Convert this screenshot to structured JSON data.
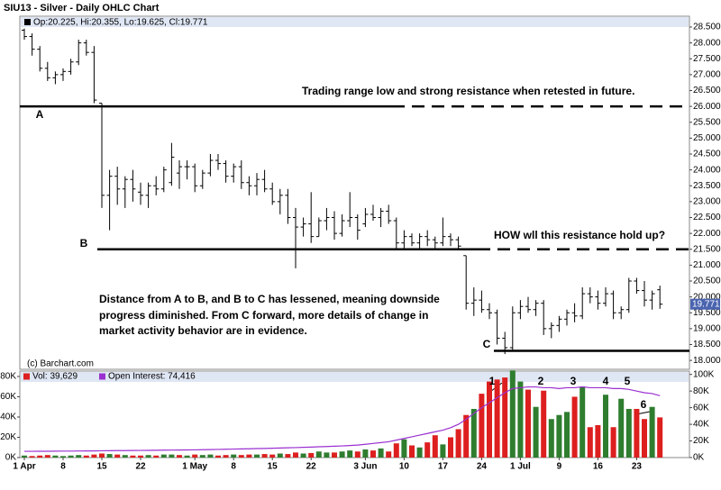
{
  "chart_data": [
    {
      "type": "ohlc",
      "title": "SIU13 - Silver - Daily OHLC Chart",
      "header": "Op:20.225, Hi:20.355, Lo:19.625, Cl:19.771",
      "color": "#000000",
      "open": [
        28.4,
        28.2,
        27.8,
        27.2,
        26.9,
        27.0,
        27.1,
        27.4,
        28.0,
        27.7,
        26.1,
        23.2,
        23.8,
        23.4,
        23.7,
        23.3,
        23.2,
        23.5,
        23.4,
        23.6,
        23.9,
        24.1,
        24.1,
        23.5,
        23.9,
        24.3,
        24.2,
        23.8,
        24.1,
        23.6,
        23.5,
        23.7,
        23.4,
        23.0,
        23.2,
        22.5,
        22.2,
        22.3,
        21.9,
        22.4,
        22.5,
        22.0,
        22.4,
        22.5,
        22.3,
        22.6,
        22.5,
        22.7,
        22.4,
        21.7,
        21.9,
        21.7,
        21.9,
        21.8,
        21.7,
        21.9,
        21.8,
        21.3,
        19.8,
        19.9,
        19.6,
        19.5,
        18.7,
        18.4,
        19.5,
        19.7,
        19.6,
        19.8,
        19.0,
        19.1,
        19.3,
        19.5,
        19.4,
        20.1,
        20.0,
        19.8,
        20.1,
        19.5,
        19.6,
        20.5,
        20.2,
        19.9,
        20.225
      ],
      "high": [
        28.45,
        28.3,
        27.9,
        27.4,
        27.1,
        27.2,
        27.5,
        28.1,
        28.1,
        27.9,
        26.1,
        24.0,
        24.1,
        23.8,
        24.0,
        23.6,
        23.6,
        23.8,
        24.1,
        24.85,
        24.3,
        24.3,
        24.2,
        24.0,
        24.5,
        24.5,
        24.3,
        24.2,
        24.3,
        23.8,
        23.9,
        24.0,
        23.6,
        23.4,
        23.4,
        22.8,
        22.5,
        23.3,
        22.5,
        22.8,
        22.7,
        22.6,
        23.3,
        22.6,
        22.8,
        22.9,
        22.8,
        22.9,
        22.5,
        22.1,
        22.0,
        22.0,
        22.1,
        21.9,
        22.5,
        22.0,
        21.9,
        21.3,
        20.3,
        20.2,
        19.8,
        19.6,
        18.9,
        19.7,
        19.9,
        20.0,
        19.9,
        19.9,
        19.2,
        19.4,
        19.6,
        19.8,
        20.3,
        20.3,
        20.2,
        20.3,
        20.2,
        19.7,
        20.6,
        20.6,
        20.5,
        20.2,
        20.355
      ],
      "low": [
        28.1,
        27.6,
        27.1,
        26.8,
        26.7,
        26.8,
        27.0,
        27.3,
        27.6,
        26.1,
        22.8,
        22.1,
        22.9,
        22.8,
        23.0,
        22.9,
        22.8,
        23.2,
        23.3,
        23.5,
        23.4,
        23.7,
        23.3,
        23.4,
        23.8,
        24.0,
        23.6,
        23.6,
        23.4,
        23.2,
        23.2,
        23.3,
        22.9,
        22.6,
        22.3,
        20.9,
        21.9,
        21.7,
        21.9,
        22.1,
        21.8,
        21.9,
        22.2,
        21.8,
        22.2,
        22.4,
        22.2,
        22.3,
        21.5,
        21.5,
        21.6,
        21.5,
        21.6,
        21.5,
        21.6,
        21.6,
        21.5,
        19.6,
        19.4,
        19.5,
        19.3,
        18.5,
        18.2,
        18.3,
        19.3,
        19.5,
        19.4,
        18.8,
        18.7,
        18.9,
        19.1,
        19.2,
        19.3,
        19.8,
        19.6,
        19.7,
        19.3,
        19.3,
        19.5,
        20.1,
        19.7,
        19.6,
        19.625
      ],
      "close": [
        28.2,
        27.8,
        27.2,
        26.9,
        27.0,
        27.1,
        27.4,
        28.0,
        27.7,
        26.2,
        23.2,
        23.8,
        23.4,
        23.7,
        23.4,
        23.2,
        23.5,
        23.4,
        24.0,
        24.4,
        24.1,
        24.1,
        23.5,
        23.9,
        24.3,
        24.2,
        23.8,
        24.1,
        23.6,
        23.5,
        23.7,
        23.4,
        23.0,
        23.2,
        22.5,
        22.2,
        22.3,
        21.9,
        22.4,
        22.5,
        22.0,
        22.4,
        22.5,
        22.1,
        22.6,
        22.5,
        22.7,
        22.4,
        21.7,
        21.9,
        21.7,
        21.9,
        21.8,
        21.7,
        21.9,
        21.8,
        21.6,
        19.8,
        19.9,
        19.6,
        19.5,
        18.7,
        18.4,
        19.5,
        19.7,
        19.6,
        19.8,
        19.0,
        19.1,
        19.3,
        19.5,
        19.4,
        20.1,
        20.0,
        19.8,
        20.1,
        19.5,
        19.6,
        20.5,
        20.2,
        19.9,
        20.1,
        19.771
      ],
      "last_label": "19.771",
      "ylim": [
        17.72,
        28.84
      ],
      "yticks": [
        {
          "value": 18,
          "label": "18.000"
        },
        {
          "value": 18.5,
          "label": "18.500"
        },
        {
          "value": 19,
          "label": "19.000"
        },
        {
          "value": 19.5,
          "label": "19.500"
        },
        {
          "value": 20,
          "label": "20.000"
        },
        {
          "value": 20.5,
          "label": "20.500"
        },
        {
          "value": 21,
          "label": "21.000"
        },
        {
          "value": 21.5,
          "label": "21.500"
        },
        {
          "value": 22,
          "label": "22.000"
        },
        {
          "value": 22.5,
          "label": "22.500"
        },
        {
          "value": 23,
          "label": "23.000"
        },
        {
          "value": 23.5,
          "label": "23.500"
        },
        {
          "value": 24,
          "label": "24.000"
        },
        {
          "value": 24.5,
          "label": "24.500"
        },
        {
          "value": 25,
          "label": "25.000"
        },
        {
          "value": 25.5,
          "label": "25.500"
        },
        {
          "value": 26,
          "label": "26.000"
        },
        {
          "value": 26.5,
          "label": "26.500"
        },
        {
          "value": 27,
          "label": "27.000"
        },
        {
          "value": 27.5,
          "label": "27.500"
        },
        {
          "value": 28,
          "label": "28.000"
        },
        {
          "value": 28.5,
          "label": "28.500"
        }
      ],
      "levels": [
        26.0,
        21.5,
        18.3
      ],
      "annotations": [
        "A",
        "B",
        "C",
        "Trading range low and strong resistance when retested in future.",
        "HOW wll this resistance hold up?",
        "Distance from A to B, and B to C has lessened, meaning downside",
        "progress diminished.  From C forward, more details of change in",
        "market activity behavior are in evidence."
      ],
      "copyright": "(c) Barchart.com"
    },
    {
      "type": "bar",
      "categories": [
        "1 Apr",
        null,
        null,
        null,
        null,
        "8",
        null,
        null,
        null,
        null,
        "15",
        null,
        null,
        null,
        null,
        "22",
        null,
        null,
        null,
        null,
        null,
        null,
        "1 May",
        null,
        null,
        null,
        null,
        "8",
        null,
        null,
        null,
        null,
        "15",
        null,
        null,
        null,
        null,
        "22",
        null,
        null,
        null,
        null,
        null,
        null,
        "3 Jun",
        null,
        null,
        null,
        null,
        "10",
        null,
        null,
        null,
        null,
        "17",
        null,
        null,
        null,
        null,
        "24",
        null,
        null,
        null,
        null,
        "1 Jul",
        null,
        null,
        null,
        null,
        "9",
        null,
        null,
        null,
        null,
        "16",
        null,
        null,
        null,
        null,
        "23",
        null,
        null,
        null
      ],
      "series": [
        {
          "name": "Vol: 39,629",
          "color": "#dd1f1f",
          "up_color": "#2f7d2f",
          "values": [
            2,
            1.5,
            2,
            2.5,
            2,
            1.5,
            2,
            2.5,
            2,
            3,
            4,
            3.5,
            3,
            2.5,
            2,
            2,
            2.5,
            2,
            3,
            3,
            2.5,
            2,
            3,
            2.5,
            3,
            2,
            2.5,
            3,
            2.5,
            3,
            3,
            3.5,
            3,
            4,
            3.5,
            5,
            4,
            4.5,
            6,
            5,
            5,
            6,
            7,
            6,
            8,
            7,
            9,
            6,
            14,
            18,
            12,
            10,
            15,
            22,
            13,
            20,
            28,
            42,
            48,
            63,
            75,
            77,
            79,
            86,
            75,
            67,
            50,
            66,
            38,
            42,
            45,
            60,
            70,
            30,
            32,
            62,
            30,
            58,
            48,
            48,
            38,
            50,
            39.629
          ]
        },
        {
          "name": "Open Interest: 74,416",
          "color": "#9b30d0",
          "axis": "y2",
          "type": "line",
          "values": [
            7.5,
            7.5,
            7.6,
            7.6,
            7.7,
            7.8,
            7.8,
            7.9,
            8,
            8,
            8.2,
            8.3,
            8.4,
            8.4,
            8.5,
            8.6,
            8.7,
            8.8,
            8.9,
            9,
            9.1,
            9.2,
            9.3,
            9.5,
            9.6,
            9.8,
            10,
            10.2,
            10.4,
            10.6,
            10.8,
            11,
            11.2,
            11.5,
            11.8,
            12,
            12.3,
            12.6,
            13,
            13.3,
            13.7,
            14,
            14.5,
            15,
            16,
            17,
            18,
            19,
            21,
            23,
            25,
            27,
            29,
            31,
            33,
            36,
            40,
            46,
            53,
            60,
            66,
            72,
            78,
            83,
            84,
            85,
            85,
            84,
            84,
            83,
            84,
            84,
            85,
            84,
            84,
            84,
            83,
            83,
            82,
            80,
            78,
            77,
            74.416
          ]
        }
      ],
      "ylim": [
        0,
        85.3
      ],
      "yticks": [
        {
          "value": 0,
          "label": "0K"
        },
        {
          "value": 20,
          "label": "20K"
        },
        {
          "value": 40,
          "label": "40K"
        },
        {
          "value": 60,
          "label": "60K"
        },
        {
          "value": 80,
          "label": "80K"
        }
      ],
      "y2lim": [
        0,
        104
      ],
      "y2ticks": [
        {
          "value": 0,
          "label": "0K"
        },
        {
          "value": 20,
          "label": "20K"
        },
        {
          "value": 40,
          "label": "40K"
        },
        {
          "value": 60,
          "label": "60K"
        },
        {
          "value": 80,
          "label": "80K"
        },
        {
          "value": 100,
          "label": "100K"
        }
      ],
      "annotations": [
        "1",
        "2",
        "3",
        "4",
        "5",
        "6"
      ]
    }
  ]
}
